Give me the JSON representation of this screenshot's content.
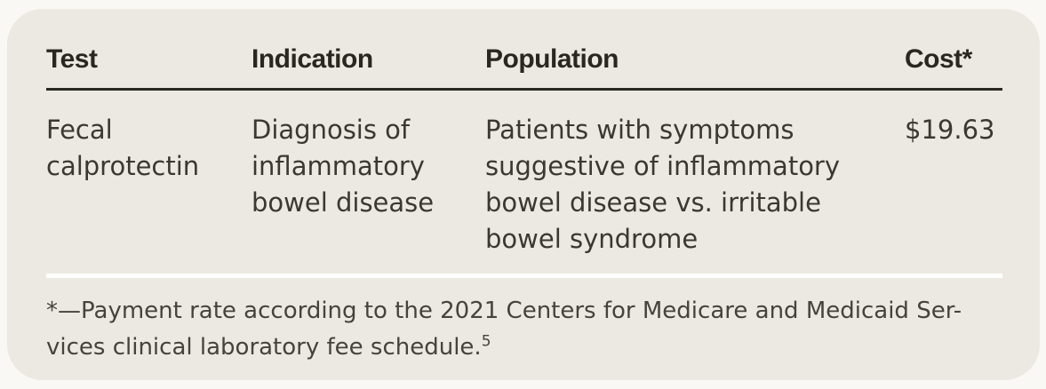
{
  "table": {
    "columns": [
      {
        "label": "Test"
      },
      {
        "label": "Indication"
      },
      {
        "label": "Population"
      },
      {
        "label": "Cost*"
      }
    ],
    "rows": [
      {
        "test": "Fecal calprotectin",
        "indication": "Diagnosis of inflammatory bowel disease",
        "population": "Patients with symptoms suggestive of inflammatory bowel disease vs. irritable bowel syndrome",
        "cost": "$19.63"
      }
    ]
  },
  "footnote": {
    "line1": "*—Payment rate according to the 2021 Centers for Medicare and Medicaid Ser-",
    "line2": "vices clinical laboratory fee schedule.",
    "reference_superscript": "5"
  },
  "colors": {
    "card_background": "#ebe9e1",
    "page_background": "#f9f8f4",
    "header_rule": "#2b2a22",
    "body_text": "#3a3831",
    "footnote_divider": "#ffffff"
  }
}
